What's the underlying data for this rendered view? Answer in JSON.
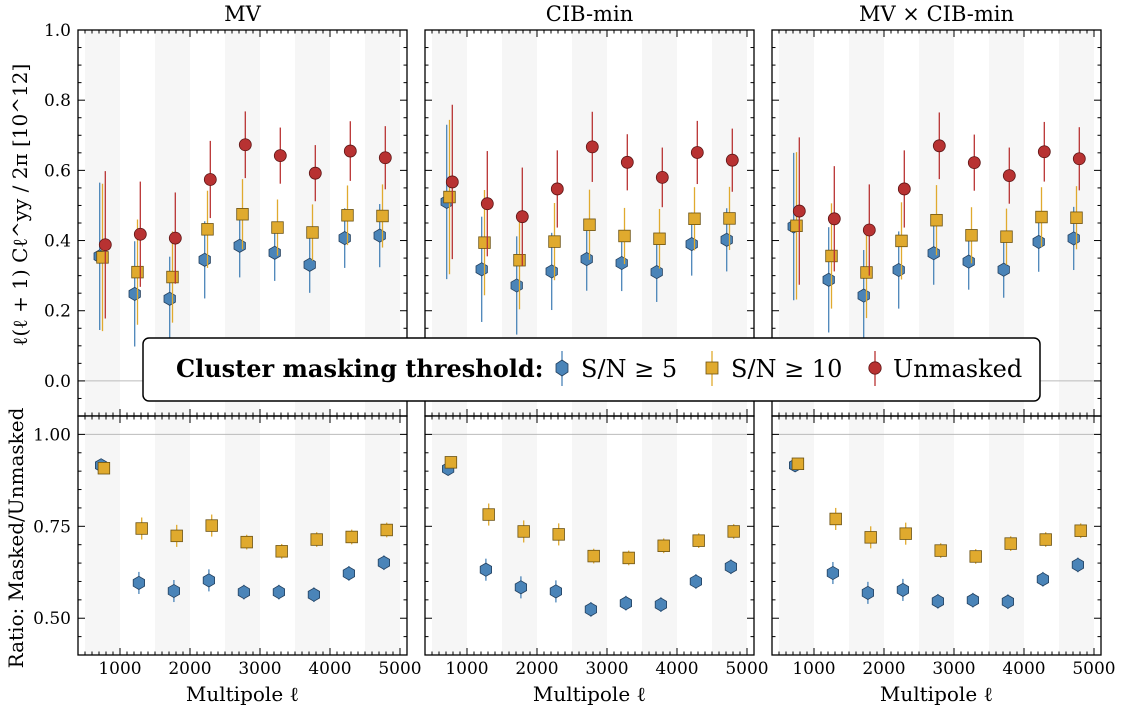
{
  "chart_data": {
    "type": "scatter",
    "panels": [
      {
        "title": "MV",
        "top": {
          "series": [
            {
              "name": "S/N ≥ 5",
              "x": [
                710,
                1210,
                1710,
                2210,
                2710,
                3210,
                3710,
                4210,
                4710
              ],
              "y": [
                0.355,
                0.248,
                0.234,
                0.345,
                0.385,
                0.365,
                0.331,
                0.407,
                0.414
              ],
              "err": [
                0.21,
                0.15,
                0.12,
                0.11,
                0.09,
                0.08,
                0.08,
                0.085,
                0.09
              ]
            },
            {
              "name": "S/N ≥ 10",
              "x": [
                750,
                1250,
                1750,
                2250,
                2750,
                3250,
                3750,
                4250,
                4750
              ],
              "y": [
                0.352,
                0.31,
                0.296,
                0.432,
                0.475,
                0.437,
                0.423,
                0.472,
                0.47
              ],
              "err": [
                0.21,
                0.15,
                0.13,
                0.11,
                0.1,
                0.08,
                0.08,
                0.085,
                0.09
              ]
            },
            {
              "name": "Unmasked",
              "x": [
                790,
                1290,
                1790,
                2290,
                2790,
                3290,
                3790,
                4290,
                4790
              ],
              "y": [
                0.388,
                0.418,
                0.407,
                0.574,
                0.673,
                0.642,
                0.592,
                0.655,
                0.636
              ],
              "err": [
                0.21,
                0.15,
                0.13,
                0.11,
                0.095,
                0.08,
                0.08,
                0.085,
                0.09
              ]
            }
          ]
        },
        "bottom": {
          "series": [
            {
              "name": "S/N ≥ 5",
              "x": [
                730,
                1270,
                1770,
                2270,
                2770,
                3270,
                3770,
                4270,
                4770
              ],
              "y": [
                0.916,
                0.596,
                0.574,
                0.603,
                0.571,
                0.571,
                0.564,
                0.622,
                0.651
              ],
              "err": [
                0.015,
                0.03,
                0.03,
                0.03,
                0.02,
                0.02,
                0.02,
                0.02,
                0.02
              ]
            },
            {
              "name": "S/N ≥ 10",
              "x": [
                770,
                1310,
                1810,
                2310,
                2810,
                3310,
                3810,
                4310,
                4810
              ],
              "y": [
                0.908,
                0.744,
                0.724,
                0.752,
                0.707,
                0.682,
                0.714,
                0.721,
                0.74
              ],
              "err": [
                0.015,
                0.03,
                0.03,
                0.03,
                0.02,
                0.02,
                0.02,
                0.02,
                0.02
              ]
            }
          ]
        }
      },
      {
        "title": "CIB-min",
        "top": {
          "series": [
            {
              "name": "S/N ≥ 5",
              "x": [
                710,
                1210,
                1710,
                2210,
                2710,
                3210,
                3710,
                4210,
                4710
              ],
              "y": [
                0.51,
                0.318,
                0.272,
                0.312,
                0.347,
                0.336,
                0.31,
                0.39,
                0.402
              ],
              "err": [
                0.22,
                0.15,
                0.14,
                0.11,
                0.09,
                0.08,
                0.085,
                0.09,
                0.09
              ]
            },
            {
              "name": "S/N ≥ 10",
              "x": [
                750,
                1250,
                1750,
                2250,
                2750,
                3250,
                3750,
                4250,
                4750
              ],
              "y": [
                0.524,
                0.394,
                0.344,
                0.397,
                0.445,
                0.413,
                0.405,
                0.462,
                0.463
              ],
              "err": [
                0.22,
                0.15,
                0.14,
                0.11,
                0.1,
                0.08,
                0.085,
                0.09,
                0.09
              ]
            },
            {
              "name": "Unmasked",
              "x": [
                790,
                1290,
                1790,
                2290,
                2790,
                3290,
                3790,
                4290,
                4790
              ],
              "y": [
                0.567,
                0.505,
                0.468,
                0.547,
                0.667,
                0.623,
                0.58,
                0.651,
                0.629
              ],
              "err": [
                0.22,
                0.15,
                0.14,
                0.11,
                0.1,
                0.08,
                0.085,
                0.09,
                0.09
              ]
            }
          ]
        },
        "bottom": {
          "series": [
            {
              "name": "S/N ≥ 5",
              "x": [
                730,
                1270,
                1770,
                2270,
                2770,
                3270,
                3770,
                4270,
                4770
              ],
              "y": [
                0.906,
                0.632,
                0.584,
                0.573,
                0.524,
                0.541,
                0.537,
                0.6,
                0.64
              ],
              "err": [
                0.015,
                0.03,
                0.03,
                0.03,
                0.02,
                0.02,
                0.02,
                0.02,
                0.02
              ]
            },
            {
              "name": "S/N ≥ 10",
              "x": [
                770,
                1310,
                1810,
                2310,
                2810,
                3310,
                3810,
                4310,
                4810
              ],
              "y": [
                0.924,
                0.782,
                0.736,
                0.728,
                0.669,
                0.664,
                0.697,
                0.711,
                0.736
              ],
              "err": [
                0.015,
                0.03,
                0.03,
                0.03,
                0.02,
                0.02,
                0.02,
                0.02,
                0.02
              ]
            }
          ]
        }
      },
      {
        "title": "MV × CIB-min",
        "top": {
          "series": [
            {
              "name": "S/N ≥ 5",
              "x": [
                710,
                1210,
                1710,
                2210,
                2710,
                3210,
                3710,
                4210,
                4710
              ],
              "y": [
                0.44,
                0.288,
                0.243,
                0.316,
                0.364,
                0.34,
                0.317,
                0.396,
                0.406
              ],
              "err": [
                0.21,
                0.15,
                0.13,
                0.11,
                0.09,
                0.08,
                0.08,
                0.085,
                0.09
              ]
            },
            {
              "name": "S/N ≥ 10",
              "x": [
                750,
                1250,
                1750,
                2250,
                2750,
                3250,
                3750,
                4250,
                4750
              ],
              "y": [
                0.442,
                0.356,
                0.309,
                0.399,
                0.458,
                0.415,
                0.411,
                0.467,
                0.465
              ],
              "err": [
                0.21,
                0.15,
                0.13,
                0.11,
                0.1,
                0.08,
                0.08,
                0.085,
                0.09
              ]
            },
            {
              "name": "Unmasked",
              "x": [
                790,
                1290,
                1790,
                2290,
                2790,
                3290,
                3790,
                4290,
                4790
              ],
              "y": [
                0.484,
                0.462,
                0.43,
                0.547,
                0.67,
                0.622,
                0.585,
                0.653,
                0.633
              ],
              "err": [
                0.21,
                0.15,
                0.13,
                0.11,
                0.095,
                0.08,
                0.08,
                0.085,
                0.09
              ]
            }
          ]
        },
        "bottom": {
          "series": [
            {
              "name": "S/N ≥ 5",
              "x": [
                730,
                1270,
                1770,
                2270,
                2770,
                3270,
                3770,
                4270,
                4770
              ],
              "y": [
                0.916,
                0.623,
                0.569,
                0.577,
                0.546,
                0.549,
                0.545,
                0.606,
                0.645
              ],
              "err": [
                0.015,
                0.03,
                0.03,
                0.03,
                0.02,
                0.02,
                0.02,
                0.02,
                0.02
              ]
            },
            {
              "name": "S/N ≥ 10",
              "x": [
                770,
                1310,
                1810,
                2310,
                2810,
                3310,
                3810,
                4310,
                4810
              ],
              "y": [
                0.92,
                0.77,
                0.72,
                0.73,
                0.684,
                0.668,
                0.703,
                0.714,
                0.738
              ],
              "err": [
                0.015,
                0.03,
                0.03,
                0.03,
                0.02,
                0.02,
                0.02,
                0.02,
                0.02
              ]
            }
          ]
        }
      }
    ],
    "xlim": [
      400,
      5100
    ],
    "xticks": [
      1000,
      2000,
      3000,
      4000,
      5000
    ],
    "xtick_labels": [
      "1000",
      "2000",
      "3000",
      "4000",
      "5000"
    ],
    "top_ylim": [
      -0.1,
      1.0
    ],
    "top_yticks": [
      0.0,
      0.2,
      0.4,
      0.6,
      0.8,
      1.0
    ],
    "top_ytick_labels": [
      "0.0",
      "0.2",
      "0.4",
      "0.6",
      "0.8",
      "1.0"
    ],
    "bottom_ylim": [
      0.4,
      1.05
    ],
    "bottom_yticks": [
      0.5,
      0.75,
      1.0
    ],
    "bottom_ytick_labels": [
      "0.50",
      "0.75",
      "1.00"
    ],
    "reference_line_top": 0.0,
    "reference_line_bottom": 1.0,
    "shaded_bands": [
      [
        500,
        1000
      ],
      [
        1500,
        2000
      ],
      [
        2500,
        3000
      ],
      [
        3500,
        4000
      ],
      [
        4500,
        5000
      ]
    ],
    "xlabel": "Multipole ℓ",
    "ylabel_top": "ℓ(ℓ + 1) Cℓ^yy / 2π [10^12]",
    "ylabel_bottom": "Ratio: Masked/Unmasked",
    "legend": {
      "title": "Cluster masking threshold:",
      "entries": [
        "S/N ≥ 5",
        "S/N ≥ 10",
        "Unmasked"
      ]
    },
    "colors": {
      "sn5": "#4a84b8",
      "sn10": "#e0aa2e",
      "unmasked": "#b83232",
      "band": "#f6f6f6",
      "refline": "#bbbbbb"
    }
  }
}
